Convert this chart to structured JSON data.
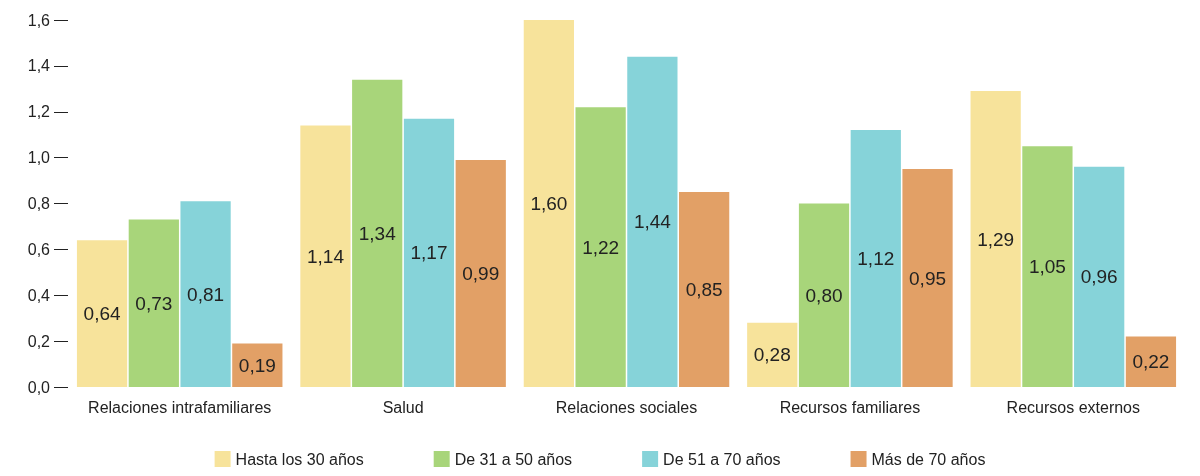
{
  "chart_data": {
    "type": "bar",
    "categories": [
      "Relaciones intrafamiliares",
      "Salud",
      "Relaciones sociales",
      "Recursos familiares",
      "Recursos externos"
    ],
    "series": [
      {
        "name": "Hasta los 30 años",
        "color": "#f7e39b",
        "values": [
          0.64,
          1.14,
          1.6,
          0.28,
          1.29
        ],
        "value_labels": [
          "0,64",
          "1,14",
          "1,60",
          "0,28",
          "1,29"
        ]
      },
      {
        "name": "De 31 a 50 años",
        "color": "#a8d57a",
        "values": [
          0.73,
          1.34,
          1.22,
          0.8,
          1.05
        ],
        "value_labels": [
          "0,73",
          "1,34",
          "1,22",
          "0,80",
          "1,05"
        ]
      },
      {
        "name": "De 51 a 70 años",
        "color": "#86d3d9",
        "values": [
          0.81,
          1.17,
          1.44,
          1.12,
          0.96
        ],
        "value_labels": [
          "0,81",
          "1,17",
          "1,44",
          "1,12",
          "0,96"
        ]
      },
      {
        "name": "Más de 70 años",
        "color": "#e2a066",
        "values": [
          0.19,
          0.99,
          0.85,
          0.95,
          0.22
        ],
        "value_labels": [
          "0,19",
          "0,99",
          "0,85",
          "0,95",
          "0,22"
        ]
      }
    ],
    "ylim": [
      0,
      1.6
    ],
    "yticks": [
      {
        "value": 0,
        "label": "0,0"
      },
      {
        "value": 0.2,
        "label": "0,2"
      },
      {
        "value": 0.4,
        "label": "0,4"
      },
      {
        "value": 0.6,
        "label": "0,6"
      },
      {
        "value": 0.8,
        "label": "0,8"
      },
      {
        "value": 1.0,
        "label": "1,0"
      },
      {
        "value": 1.2,
        "label": "1,2"
      },
      {
        "value": 1.4,
        "label": "1,4"
      },
      {
        "value": 1.6,
        "label": "1,6"
      }
    ],
    "grid": false,
    "legend": "bottom"
  }
}
